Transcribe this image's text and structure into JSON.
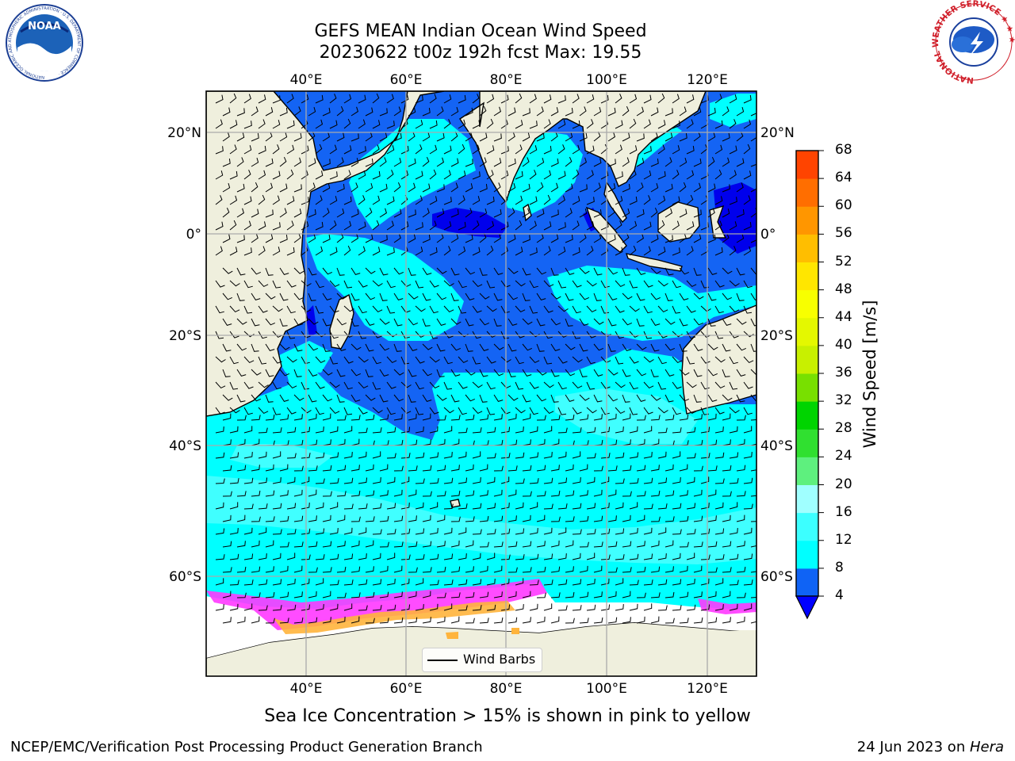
{
  "title": {
    "line1": "GEFS MEAN Indian Ocean Wind Speed",
    "line2": "20230622 t00z 192h fcst   Max: 19.55"
  },
  "map": {
    "lon_ticks": [
      "40°E",
      "60°E",
      "80°E",
      "100°E",
      "120°E"
    ],
    "lat_ticks": [
      "20°N",
      "0°",
      "20°S",
      "40°S",
      "60°S"
    ],
    "colors": {
      "land": "#efefdd",
      "wind_4_8": "#1464f4",
      "wind_8_12": "#00ffff",
      "wind_12_16": "#40ffff",
      "wind_0_4": "#0000ec",
      "sea_ice_low": "#ff38ff",
      "sea_ice_high": "#ffb43c",
      "antarctica": "#ffffff"
    },
    "legend_label": "Wind Barbs"
  },
  "colorbar": {
    "label": "Wind Speed [m/s]",
    "ticks": [
      "4",
      "8",
      "12",
      "16",
      "20",
      "24",
      "28",
      "32",
      "36",
      "40",
      "44",
      "48",
      "52",
      "56",
      "60",
      "64",
      "68"
    ],
    "colors": [
      "#0f63f5",
      "#00ffff",
      "#3cffff",
      "#a0ffff",
      "#5ef07e",
      "#30e030",
      "#00d400",
      "#78e000",
      "#c8f000",
      "#e4f800",
      "#f8ff00",
      "#ffe600",
      "#ffbe00",
      "#ff9600",
      "#ff6e00",
      "#ff4400",
      "#ff0000"
    ],
    "extend_color": "#0000ff"
  },
  "caption": "Sea Ice Concentration > 15% is shown in pink to yellow",
  "footer": {
    "credit": "NCEP/EMC/Verification Post Processing Product Generation Branch",
    "date": "24 Jun 2023 on ",
    "host": "Hera"
  },
  "logos": {
    "noaa_text": "NOAA",
    "noaa_ring": "NATIONAL OCEANIC AND ATMOSPHERIC ADMINISTRATION · U.S. DEPARTMENT OF COMMERCE ·",
    "nws_ring": "NATIONAL WEATHER SERVICE ★ ★ ★"
  }
}
